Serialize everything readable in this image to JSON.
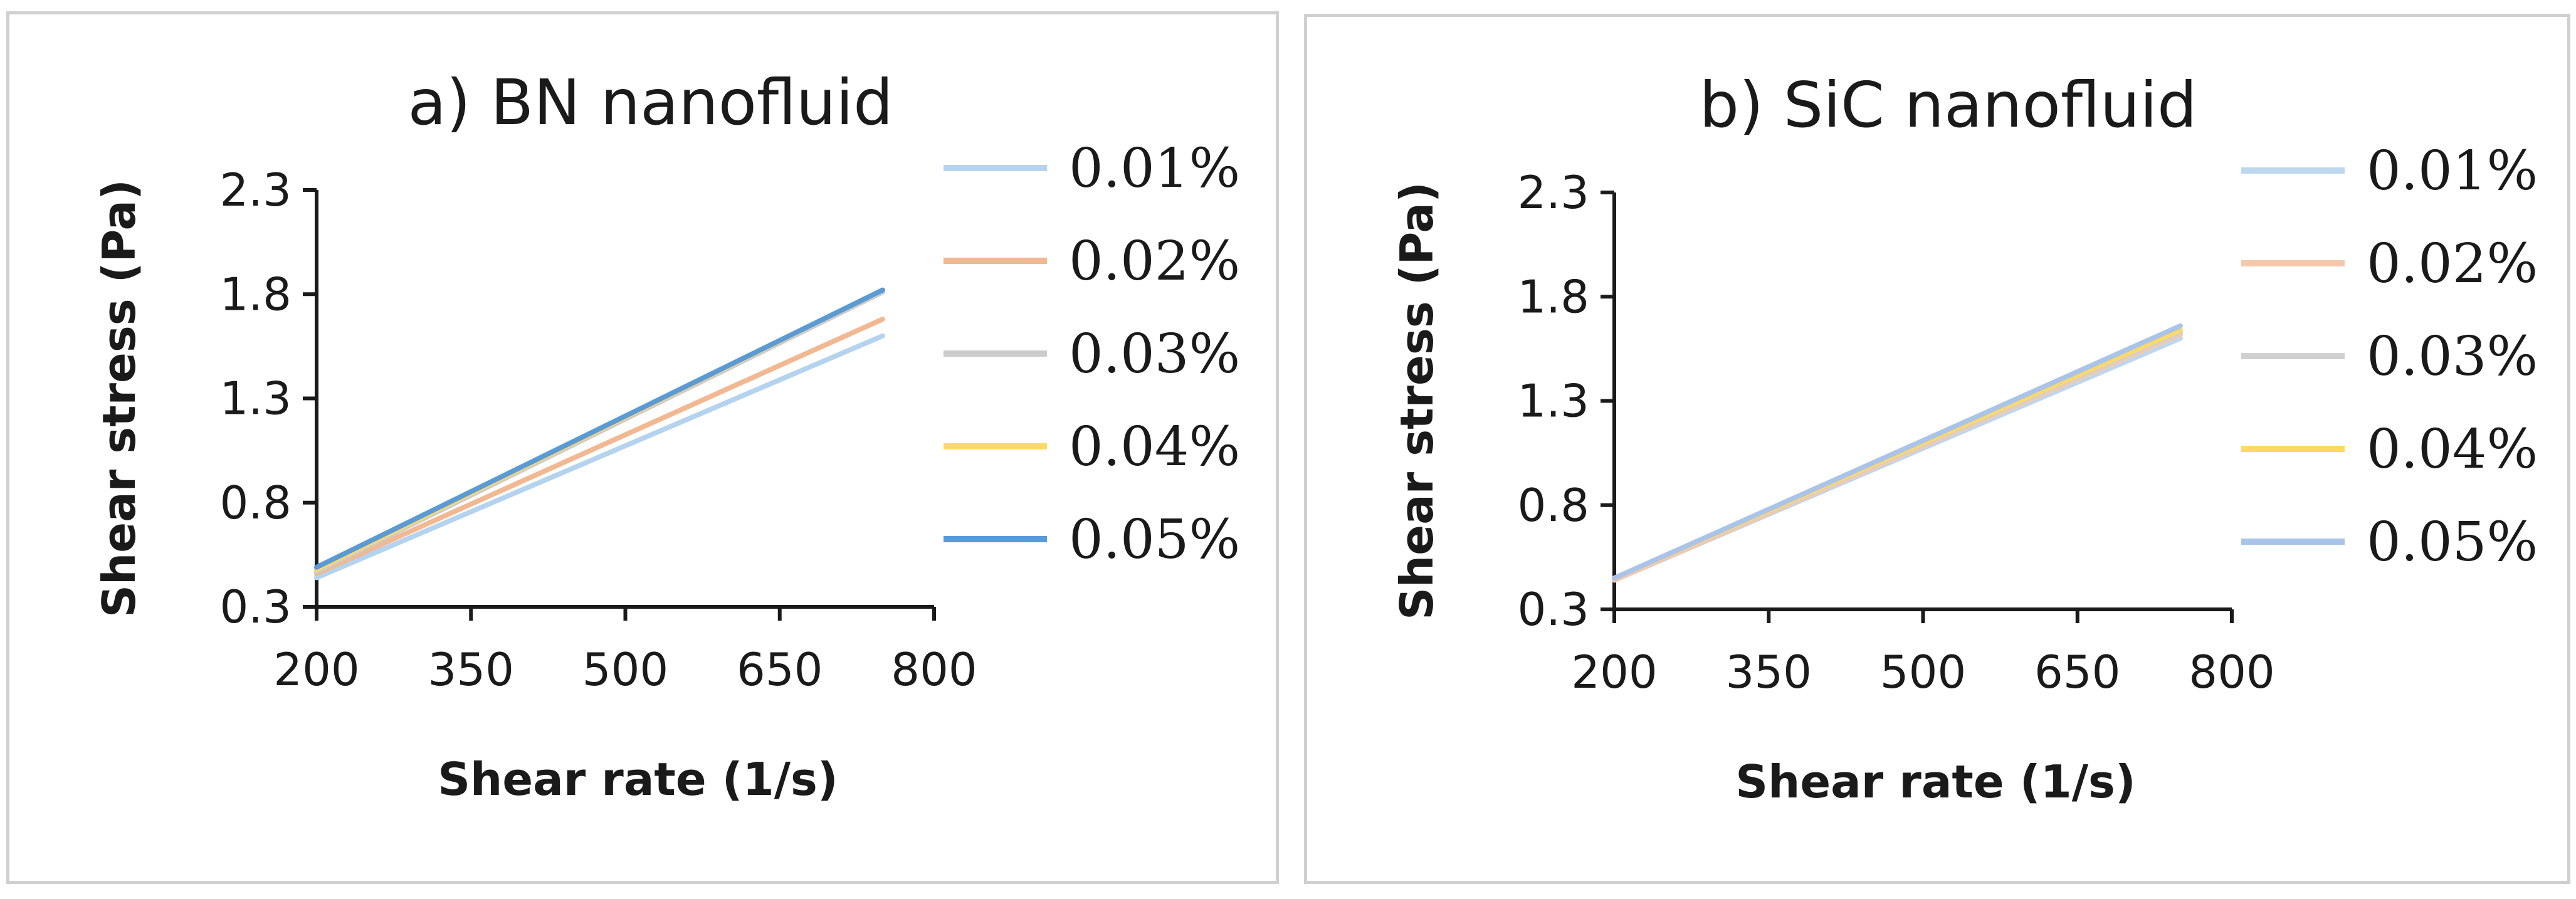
{
  "chart_data": [
    {
      "type": "line",
      "title": "a) BN nanofluid",
      "xlabel": "Shear rate (1/s)",
      "ylabel": "Shear stress (Pa)",
      "xlim": [
        200,
        800
      ],
      "ylim": [
        0.3,
        2.3
      ],
      "xticks": [
        "200",
        "350",
        "500",
        "650",
        "800"
      ],
      "yticks": [
        "0.3",
        "0.8",
        "1.3",
        "1.8",
        "2.3"
      ],
      "grid": false,
      "legend_position": "right",
      "series": [
        {
          "name": "0.01%",
          "color": "#b4d3ee",
          "x": [
            200,
            750
          ],
          "y": [
            0.44,
            1.6
          ]
        },
        {
          "name": "0.02%",
          "color": "#f1b891",
          "x": [
            200,
            750
          ],
          "y": [
            0.46,
            1.68
          ]
        },
        {
          "name": "0.03%",
          "color": "#cccccc",
          "x": [
            200,
            750
          ],
          "y": [
            0.47,
            1.81
          ]
        },
        {
          "name": "0.04%",
          "color": "#ffd966",
          "x": [
            200,
            750
          ],
          "y": [
            0.48,
            1.82
          ]
        },
        {
          "name": "0.05%",
          "color": "#5b9bd5",
          "x": [
            200,
            750
          ],
          "y": [
            0.49,
            1.82
          ]
        }
      ]
    },
    {
      "type": "line",
      "title": "b) SiC nanofluid",
      "xlabel": "Shear rate (1/s)",
      "ylabel": "Shear stress (Pa)",
      "xlim": [
        200,
        800
      ],
      "ylim": [
        0.3,
        2.3
      ],
      "xticks": [
        "200",
        "350",
        "500",
        "650",
        "800"
      ],
      "yticks": [
        "0.3",
        "0.8",
        "1.3",
        "1.8",
        "2.3"
      ],
      "grid": false,
      "legend_position": "right",
      "series": [
        {
          "name": "0.01%",
          "color": "#bdd7ee",
          "x": [
            200,
            750
          ],
          "y": [
            0.44,
            1.6
          ]
        },
        {
          "name": "0.02%",
          "color": "#f4c9ab",
          "x": [
            200,
            750
          ],
          "y": [
            0.44,
            1.62
          ]
        },
        {
          "name": "0.03%",
          "color": "#d0d0d0",
          "x": [
            200,
            750
          ],
          "y": [
            0.45,
            1.63
          ]
        },
        {
          "name": "0.04%",
          "color": "#ffd966",
          "x": [
            200,
            750
          ],
          "y": [
            0.45,
            1.64
          ]
        },
        {
          "name": "0.05%",
          "color": "#a9c4e8",
          "x": [
            200,
            750
          ],
          "y": [
            0.45,
            1.66
          ]
        }
      ]
    }
  ]
}
